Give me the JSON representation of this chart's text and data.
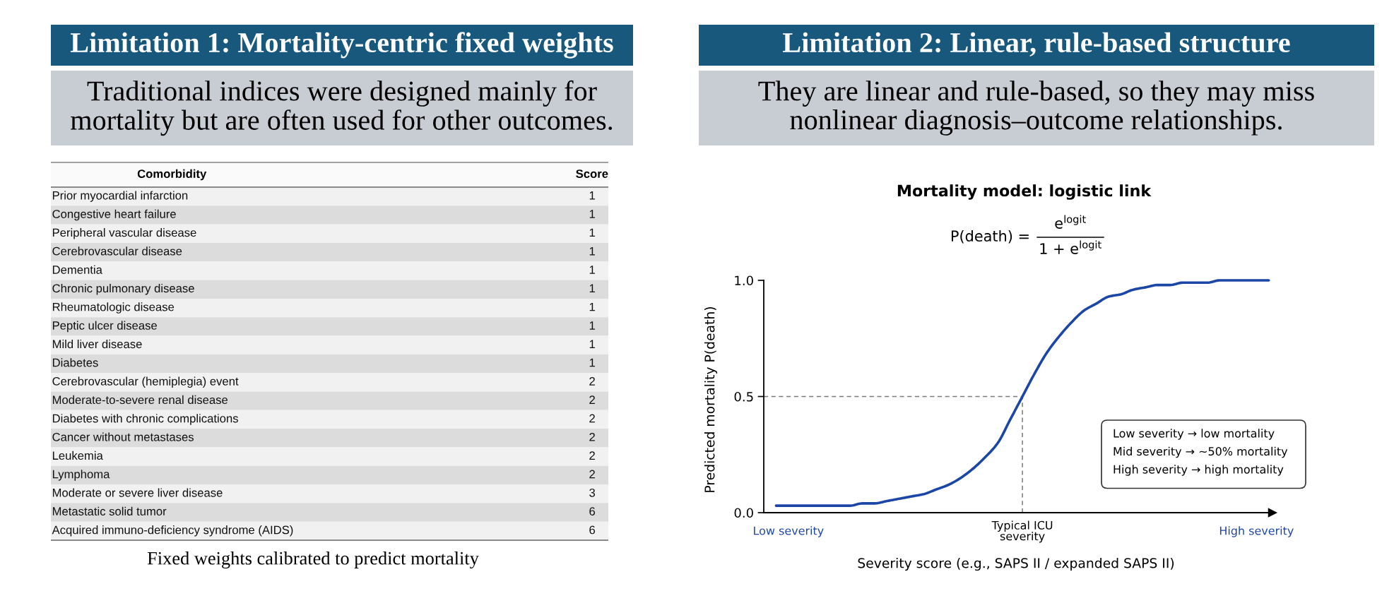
{
  "chart_data": [
    {
      "type": "other",
      "title": "Limitation 1: Mortality-centric fixed weights",
      "subtitle": "Traditional indices were designed mainly for mortality but are often used for other outcomes.",
      "categories": [
        "Prior myocardial infarction",
        "Congestive heart failure",
        "Peripheral vascular disease",
        "Cerebrovascular disease",
        "Dementia",
        "Chronic pulmonary disease",
        "Rheumatologic disease",
        "Peptic ulcer disease",
        "Mild liver disease",
        "Diabetes",
        "Cerebrovascular (hemiplegia) event",
        "Moderate-to-severe renal disease",
        "Diabetes with chronic complications",
        "Cancer without metastases",
        "Leukemia",
        "Lymphoma",
        "Moderate or severe liver disease",
        "Metastatic solid tumor",
        "Acquired immuno-deficiency syndrome (AIDS)"
      ],
      "values": [
        1,
        1,
        1,
        1,
        1,
        1,
        1,
        1,
        1,
        1,
        2,
        2,
        2,
        2,
        2,
        2,
        3,
        6,
        6
      ],
      "data_labels": true,
      "annotations": [
        "Comorbidity",
        "Score",
        "Fixed weights calibrated to predict mortality"
      ]
    },
    {
      "type": "line",
      "title": "Limitation 2: Linear, rule-based structure",
      "subtitle": "They are linear and rule-based, so they may miss nonlinear diagnosis–outcome relationships.",
      "xlabel": "Severity score (e.g., SAPS II / expanded SAPS II)",
      "ylabel": "Predicted mortality P(death)",
      "categories": [
        null,
        "Low severity",
        null,
        null,
        null,
        null,
        null,
        null,
        null,
        null,
        null,
        null,
        null,
        null,
        null,
        null,
        null,
        null,
        null,
        null,
        "Typical ICU\nseverity",
        null,
        null,
        null,
        null,
        null,
        null,
        null,
        null,
        null,
        null,
        null,
        null,
        null,
        null,
        null,
        null,
        null,
        null,
        "High severity",
        null
      ],
      "series": [
        {
          "color": "#1c46a6",
          "values": [
            0.03,
            0.03,
            0.03,
            0.03,
            0.03,
            0.03,
            0.03,
            0.04,
            0.04,
            0.05,
            0.06,
            0.07,
            0.08,
            0.1,
            0.12,
            0.15,
            0.19,
            0.24,
            0.3,
            0.4,
            0.5,
            0.6,
            0.69,
            0.76,
            0.82,
            0.87,
            0.9,
            0.93,
            0.94,
            0.96,
            0.97,
            0.98,
            0.98,
            0.99,
            0.99,
            0.99,
            1.0,
            1.0,
            1.0,
            1.0,
            1.0
          ]
        }
      ],
      "line_style": "solid",
      "ylim": [
        0,
        1
      ],
      "yticks": [
        {
          "value": 0,
          "label": "0.0"
        },
        0.5,
        {
          "value": 1,
          "label": "1.0"
        }
      ],
      "ref_lines": [
        {
          "axis": "y",
          "value": 0.5,
          "color": "#7a7a7a",
          "line_style": "dashed"
        },
        {
          "axis": "x",
          "value": "Typical ICU\nseverity",
          "color": "#7a7a7a",
          "line_style": "dashed"
        }
      ],
      "annotations": [
        "Mortality model: logistic link",
        "P(death) =",
        "e$^{logit}$",
        "1 + e$^{logit}$",
        "Low severity → low mortality",
        "Mid severity → ~50% mortality",
        "High severity → high mortality"
      ]
    }
  ]
}
